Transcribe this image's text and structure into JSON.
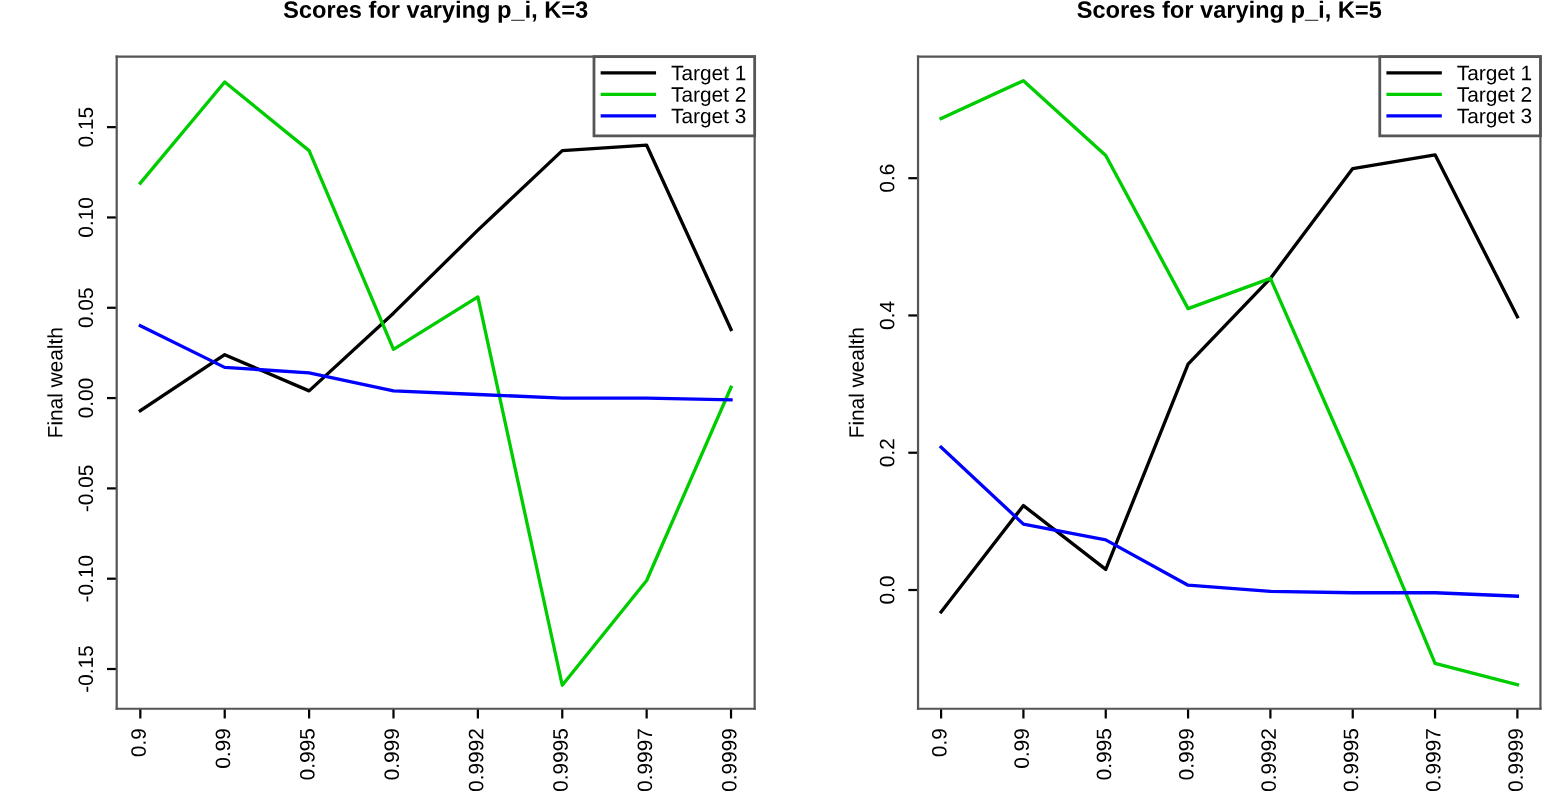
{
  "chart_data": [
    {
      "type": "line",
      "title": "Scores for varying p_i, K=3",
      "ylabel": "Final wealth",
      "categories": [
        "0.9",
        "0.99",
        "0.995",
        "0.999",
        "0.9992",
        "0.9995",
        "0.9997",
        "0.9999"
      ],
      "series": [
        {
          "name": "Target 1",
          "color": "#000000",
          "values": [
            -0.007,
            0.024,
            0.004,
            0.047,
            0.093,
            0.137,
            0.14,
            0.038
          ]
        },
        {
          "name": "Target 2",
          "color": "#00cd00",
          "values": [
            0.119,
            0.175,
            0.137,
            0.027,
            0.056,
            -0.159,
            -0.101,
            0.006
          ]
        },
        {
          "name": "Target 3",
          "color": "#0000ff",
          "values": [
            0.04,
            0.017,
            0.014,
            0.004,
            0.002,
            0.0,
            0.0,
            -0.001
          ]
        }
      ],
      "ylim": [
        -0.172,
        0.189
      ],
      "yticks": [
        {
          "value": -0.15,
          "label": "-0.15"
        },
        {
          "value": -0.1,
          "label": "-0.10"
        },
        {
          "value": -0.05,
          "label": "-0.05"
        },
        {
          "value": 0,
          "label": "0.00"
        },
        {
          "value": 0.05,
          "label": "0.05"
        },
        {
          "value": 0.1,
          "label": "0.10"
        },
        {
          "value": 0.15,
          "label": "0.15"
        }
      ],
      "legend": "top right",
      "grid": false
    },
    {
      "type": "line",
      "title": "Scores for varying p_i, K=5",
      "ylabel": "Final wealth",
      "categories": [
        "0.9",
        "0.99",
        "0.995",
        "0.999",
        "0.9992",
        "0.9995",
        "0.9997",
        "0.9999"
      ],
      "series": [
        {
          "name": "Target 1",
          "color": "#000000",
          "values": [
            -0.032,
            0.123,
            0.03,
            0.329,
            0.454,
            0.614,
            0.634,
            0.398
          ]
        },
        {
          "name": "Target 2",
          "color": "#00cd00",
          "values": [
            0.687,
            0.742,
            0.633,
            0.41,
            0.454,
            0.181,
            -0.107,
            -0.138
          ]
        },
        {
          "name": "Target 3",
          "color": "#0000ff",
          "values": [
            0.208,
            0.096,
            0.073,
            0.007,
            -0.002,
            -0.004,
            -0.004,
            -0.009
          ]
        }
      ],
      "ylim": [
        -0.173,
        0.777
      ],
      "yticks": [
        {
          "value": 0,
          "label": "0.0"
        },
        {
          "value": 0.2,
          "label": "0.2"
        },
        {
          "value": 0.4,
          "label": "0.4"
        },
        {
          "value": 0.6,
          "label": "0.6"
        }
      ],
      "legend": "top right",
      "grid": false
    }
  ]
}
